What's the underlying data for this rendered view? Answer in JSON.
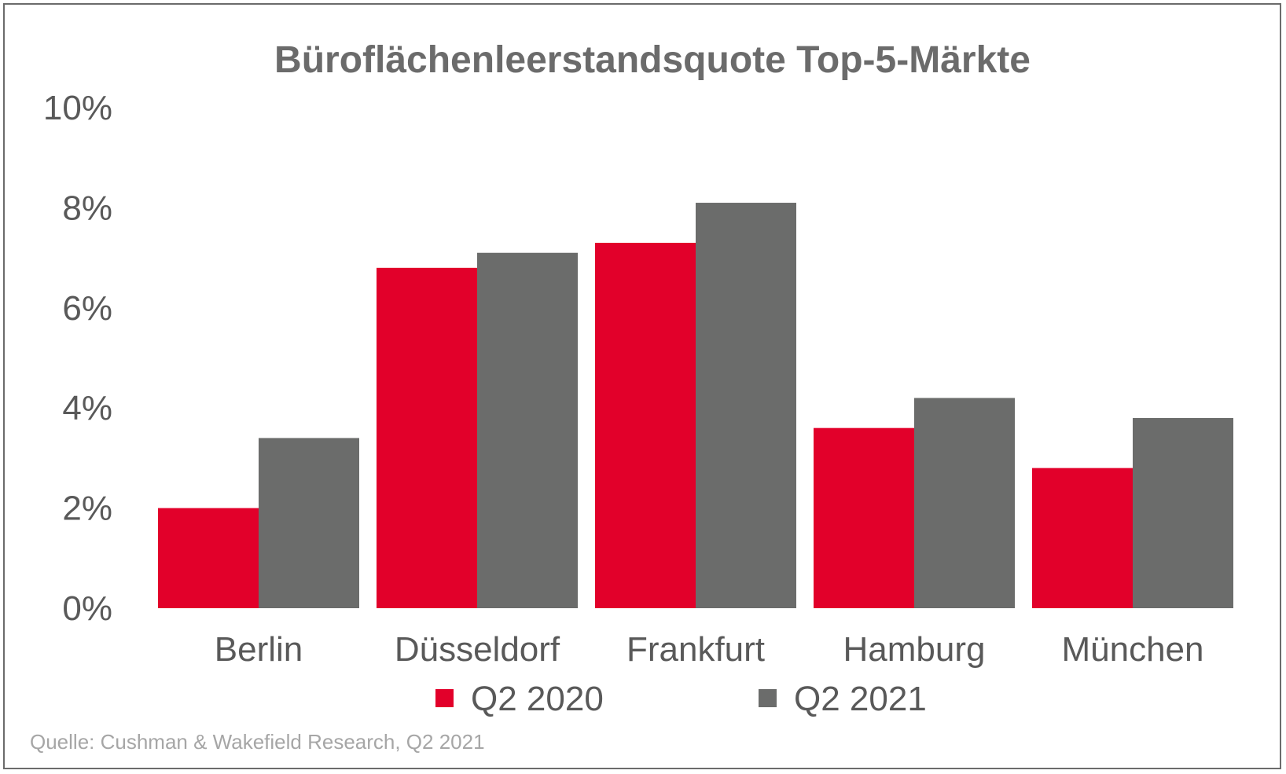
{
  "chart_data": {
    "type": "bar",
    "title": "Büroflächenleerstandsquote Top-5-Märkte",
    "categories": [
      "Berlin",
      "Düsseldorf",
      "Frankfurt",
      "Hamburg",
      "München"
    ],
    "series": [
      {
        "name": "Q2 2020",
        "color": "#e2002a",
        "values": [
          2.0,
          6.8,
          7.3,
          3.6,
          2.8
        ]
      },
      {
        "name": "Q2 2021",
        "color": "#6b6c6b",
        "values": [
          3.4,
          7.1,
          8.1,
          4.2,
          3.8
        ]
      }
    ],
    "ylim": [
      0,
      10
    ],
    "yticks": [
      0,
      2,
      4,
      6,
      8,
      10
    ],
    "ytick_labels": [
      "0%",
      "2%",
      "4%",
      "6%",
      "8%",
      "10%"
    ],
    "xlabel": "",
    "ylabel": "",
    "grid": false,
    "legend_position": "bottom"
  },
  "source_note": "Quelle: Cushman & Wakefield Research, Q2 2021"
}
